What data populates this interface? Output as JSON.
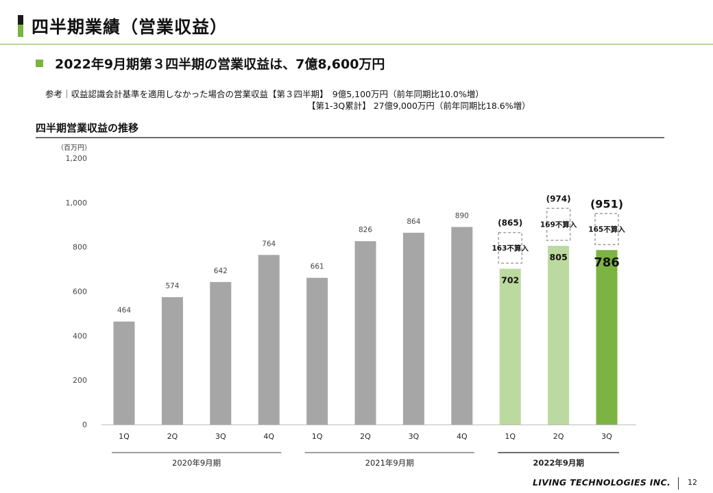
{
  "header": {
    "title": "四半期業績（営業収益）",
    "headline": "2022年9月期第３四半期の営業収益は、7億8,600万円",
    "note_line1": "参考｜収益認識会計基準を適用しなかった場合の営業収益【第３四半期】　9億5,100万円（前年同期比10.0%増）",
    "note_line2": "【第1-3Q累計】 27億9,000万円（前年同期比18.6%増）",
    "section_title": "四半期営業収益の推移"
  },
  "colors": {
    "accent": "#7cb342",
    "bar_past": "#a6a6a6",
    "bar_current_light": "#bcd9a0",
    "bar_current": "#7cb342"
  },
  "chart_data": {
    "type": "bar",
    "unit_label": "（百万円）",
    "ylim": [
      0,
      1200
    ],
    "yticks": [
      0,
      200,
      400,
      600,
      800,
      1000,
      1200
    ],
    "ytick_labels": [
      "0",
      "200",
      "400",
      "600",
      "800",
      "1,000",
      "1,200"
    ],
    "categories": [
      "1Q",
      "2Q",
      "3Q",
      "4Q",
      "1Q",
      "2Q",
      "3Q",
      "4Q",
      "1Q",
      "2Q",
      "3Q"
    ],
    "values": [
      464,
      574,
      642,
      764,
      661,
      826,
      864,
      890,
      702,
      805,
      786
    ],
    "value_labels": [
      "464",
      "574",
      "642",
      "764",
      "661",
      "826",
      "864",
      "890",
      "702",
      "805",
      "786"
    ],
    "bar_style": [
      "past",
      "past",
      "past",
      "past",
      "past",
      "past",
      "past",
      "past",
      "current_light",
      "current_light",
      "current"
    ],
    "groups": [
      {
        "label": "2020年9月期",
        "start": 0,
        "end": 3
      },
      {
        "label": "2021年9月期",
        "start": 4,
        "end": 7
      },
      {
        "label": "2022年9月期",
        "start": 8,
        "end": 10
      }
    ],
    "unrecognized": [
      {
        "index": 8,
        "amount": 163,
        "total": 865,
        "label": "163不算入",
        "total_label": "(865)"
      },
      {
        "index": 9,
        "amount": 169,
        "total": 974,
        "label": "169不算入",
        "total_label": "(974)"
      },
      {
        "index": 10,
        "amount": 165,
        "total": 951,
        "label": "165不算入",
        "total_label": "(951)"
      }
    ],
    "grid": false
  },
  "footer": {
    "company": "LIVING TECHNOLOGIES INC.",
    "page": "12"
  }
}
